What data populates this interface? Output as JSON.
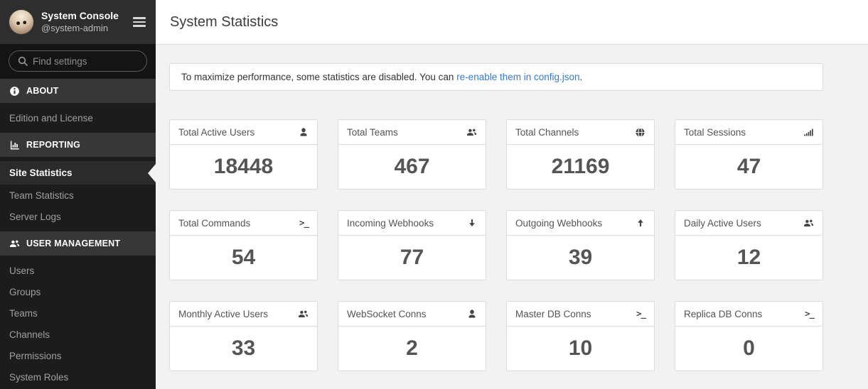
{
  "sidebar": {
    "title": "System Console",
    "subtitle": "@system-admin",
    "search_placeholder": "Find settings",
    "sections": [
      {
        "label": "ABOUT",
        "icon": "info-icon",
        "items": [
          {
            "label": "Edition and License",
            "active": false
          }
        ]
      },
      {
        "label": "REPORTING",
        "icon": "bar-chart-icon",
        "items": [
          {
            "label": "Site Statistics",
            "active": true
          },
          {
            "label": "Team Statistics",
            "active": false
          },
          {
            "label": "Server Logs",
            "active": false
          }
        ]
      },
      {
        "label": "USER MANAGEMENT",
        "icon": "users-icon",
        "items": [
          {
            "label": "Users",
            "active": false
          },
          {
            "label": "Groups",
            "active": false
          },
          {
            "label": "Teams",
            "active": false
          },
          {
            "label": "Channels",
            "active": false
          },
          {
            "label": "Permissions",
            "active": false
          },
          {
            "label": "System Roles",
            "active": false
          }
        ]
      }
    ]
  },
  "main": {
    "title": "System Statistics",
    "banner": {
      "before": "To maximize performance, some statistics are disabled. You can ",
      "link": "re-enable them in config.json",
      "after": "."
    },
    "stats": [
      {
        "label": "Total Active Users",
        "icon": "user-icon",
        "value": "18448"
      },
      {
        "label": "Total Teams",
        "icon": "users-icon",
        "value": "467"
      },
      {
        "label": "Total Channels",
        "icon": "globe-icon",
        "value": "21169"
      },
      {
        "label": "Total Sessions",
        "icon": "signal-icon",
        "value": "47"
      },
      {
        "label": "Total Commands",
        "icon": "terminal-icon",
        "value": "54"
      },
      {
        "label": "Incoming Webhooks",
        "icon": "arrow-down-icon",
        "value": "77"
      },
      {
        "label": "Outgoing Webhooks",
        "icon": "arrow-up-icon",
        "value": "39"
      },
      {
        "label": "Daily Active Users",
        "icon": "users-icon",
        "value": "12"
      },
      {
        "label": "Monthly Active Users",
        "icon": "users-icon",
        "value": "33"
      },
      {
        "label": "WebSocket Conns",
        "icon": "user-icon",
        "value": "2"
      },
      {
        "label": "Master DB Conns",
        "icon": "terminal-icon",
        "value": "10"
      },
      {
        "label": "Replica DB Conns",
        "icon": "terminal-icon",
        "value": "0"
      }
    ]
  },
  "colors": {
    "link_blue": "#3678d1",
    "sidebar_bg": "#1c1c1c",
    "sidebar_section_bg": "#373737",
    "sidebar_header_bg": "#2e2e2e",
    "content_bg": "#f2f2f2",
    "card_border": "#dcdcdc",
    "stat_text": "#555555"
  }
}
